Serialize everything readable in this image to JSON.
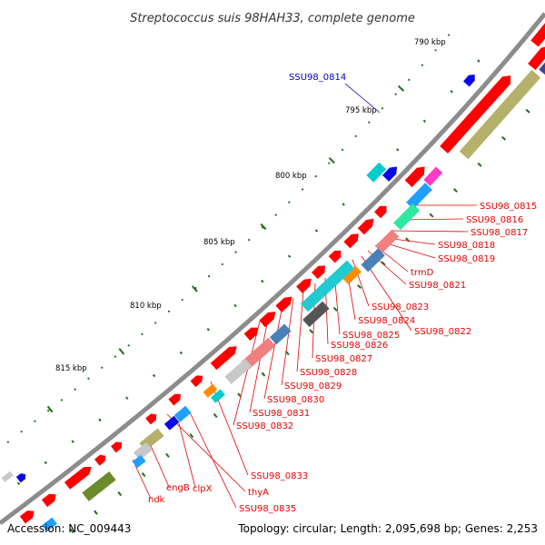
{
  "header": {
    "title": "Streptococcus suis 98HAH33, complete genome"
  },
  "footer": {
    "accession": "Accession: NC_009443",
    "summary": "Topology: circular; Length: 2,095,698 bp; Genes: 2,253"
  },
  "scale": {
    "ticks": [
      "790 kbp",
      "795 kbp",
      "800 kbp",
      "805 kbp",
      "810 kbp",
      "815 kbp"
    ]
  },
  "colors": {
    "backbone": "#8c8c8c",
    "cds": "#ff0000",
    "label_red": "#e60000",
    "label_blue": "#0000cc",
    "cog_olive": "#b5b06a",
    "cog_darkgreen": "#6b8c2a",
    "cog_cyan": "#00cccc",
    "cog_teal": "#21c9d0",
    "cog_skyblue": "#1ea0ff",
    "cog_navy": "#44448c",
    "cog_blue": "#0a0ae6",
    "cog_steel": "#4a7fb8",
    "cog_salmon": "#f08080",
    "cog_pink": "#ff3cc8",
    "cog_mint": "#2ee8a0",
    "cog_orange": "#ff8c00",
    "cog_darkgray": "#555555",
    "cog_silver": "#c8c8c8",
    "tick_green": "#1a6e1a"
  },
  "genes": {
    "blue_label": "SSU98_0814",
    "red_labels": [
      "SSU98_0815",
      "SSU98_0816",
      "SSU98_0817",
      "SSU98_0818",
      "SSU98_0819",
      "trmD",
      "SSU98_0821",
      "SSU98_0823",
      "SSU98_0824",
      "SSU98_0822",
      "SSU98_0825",
      "SSU98_0826",
      "SSU98_0827",
      "SSU98_0828",
      "SSU98_0829",
      "SSU98_0830",
      "SSU98_0831",
      "SSU98_0832",
      "SSU98_0833",
      "thyA",
      "SSU98_0835",
      "clpX",
      "engB",
      "ndk"
    ]
  }
}
